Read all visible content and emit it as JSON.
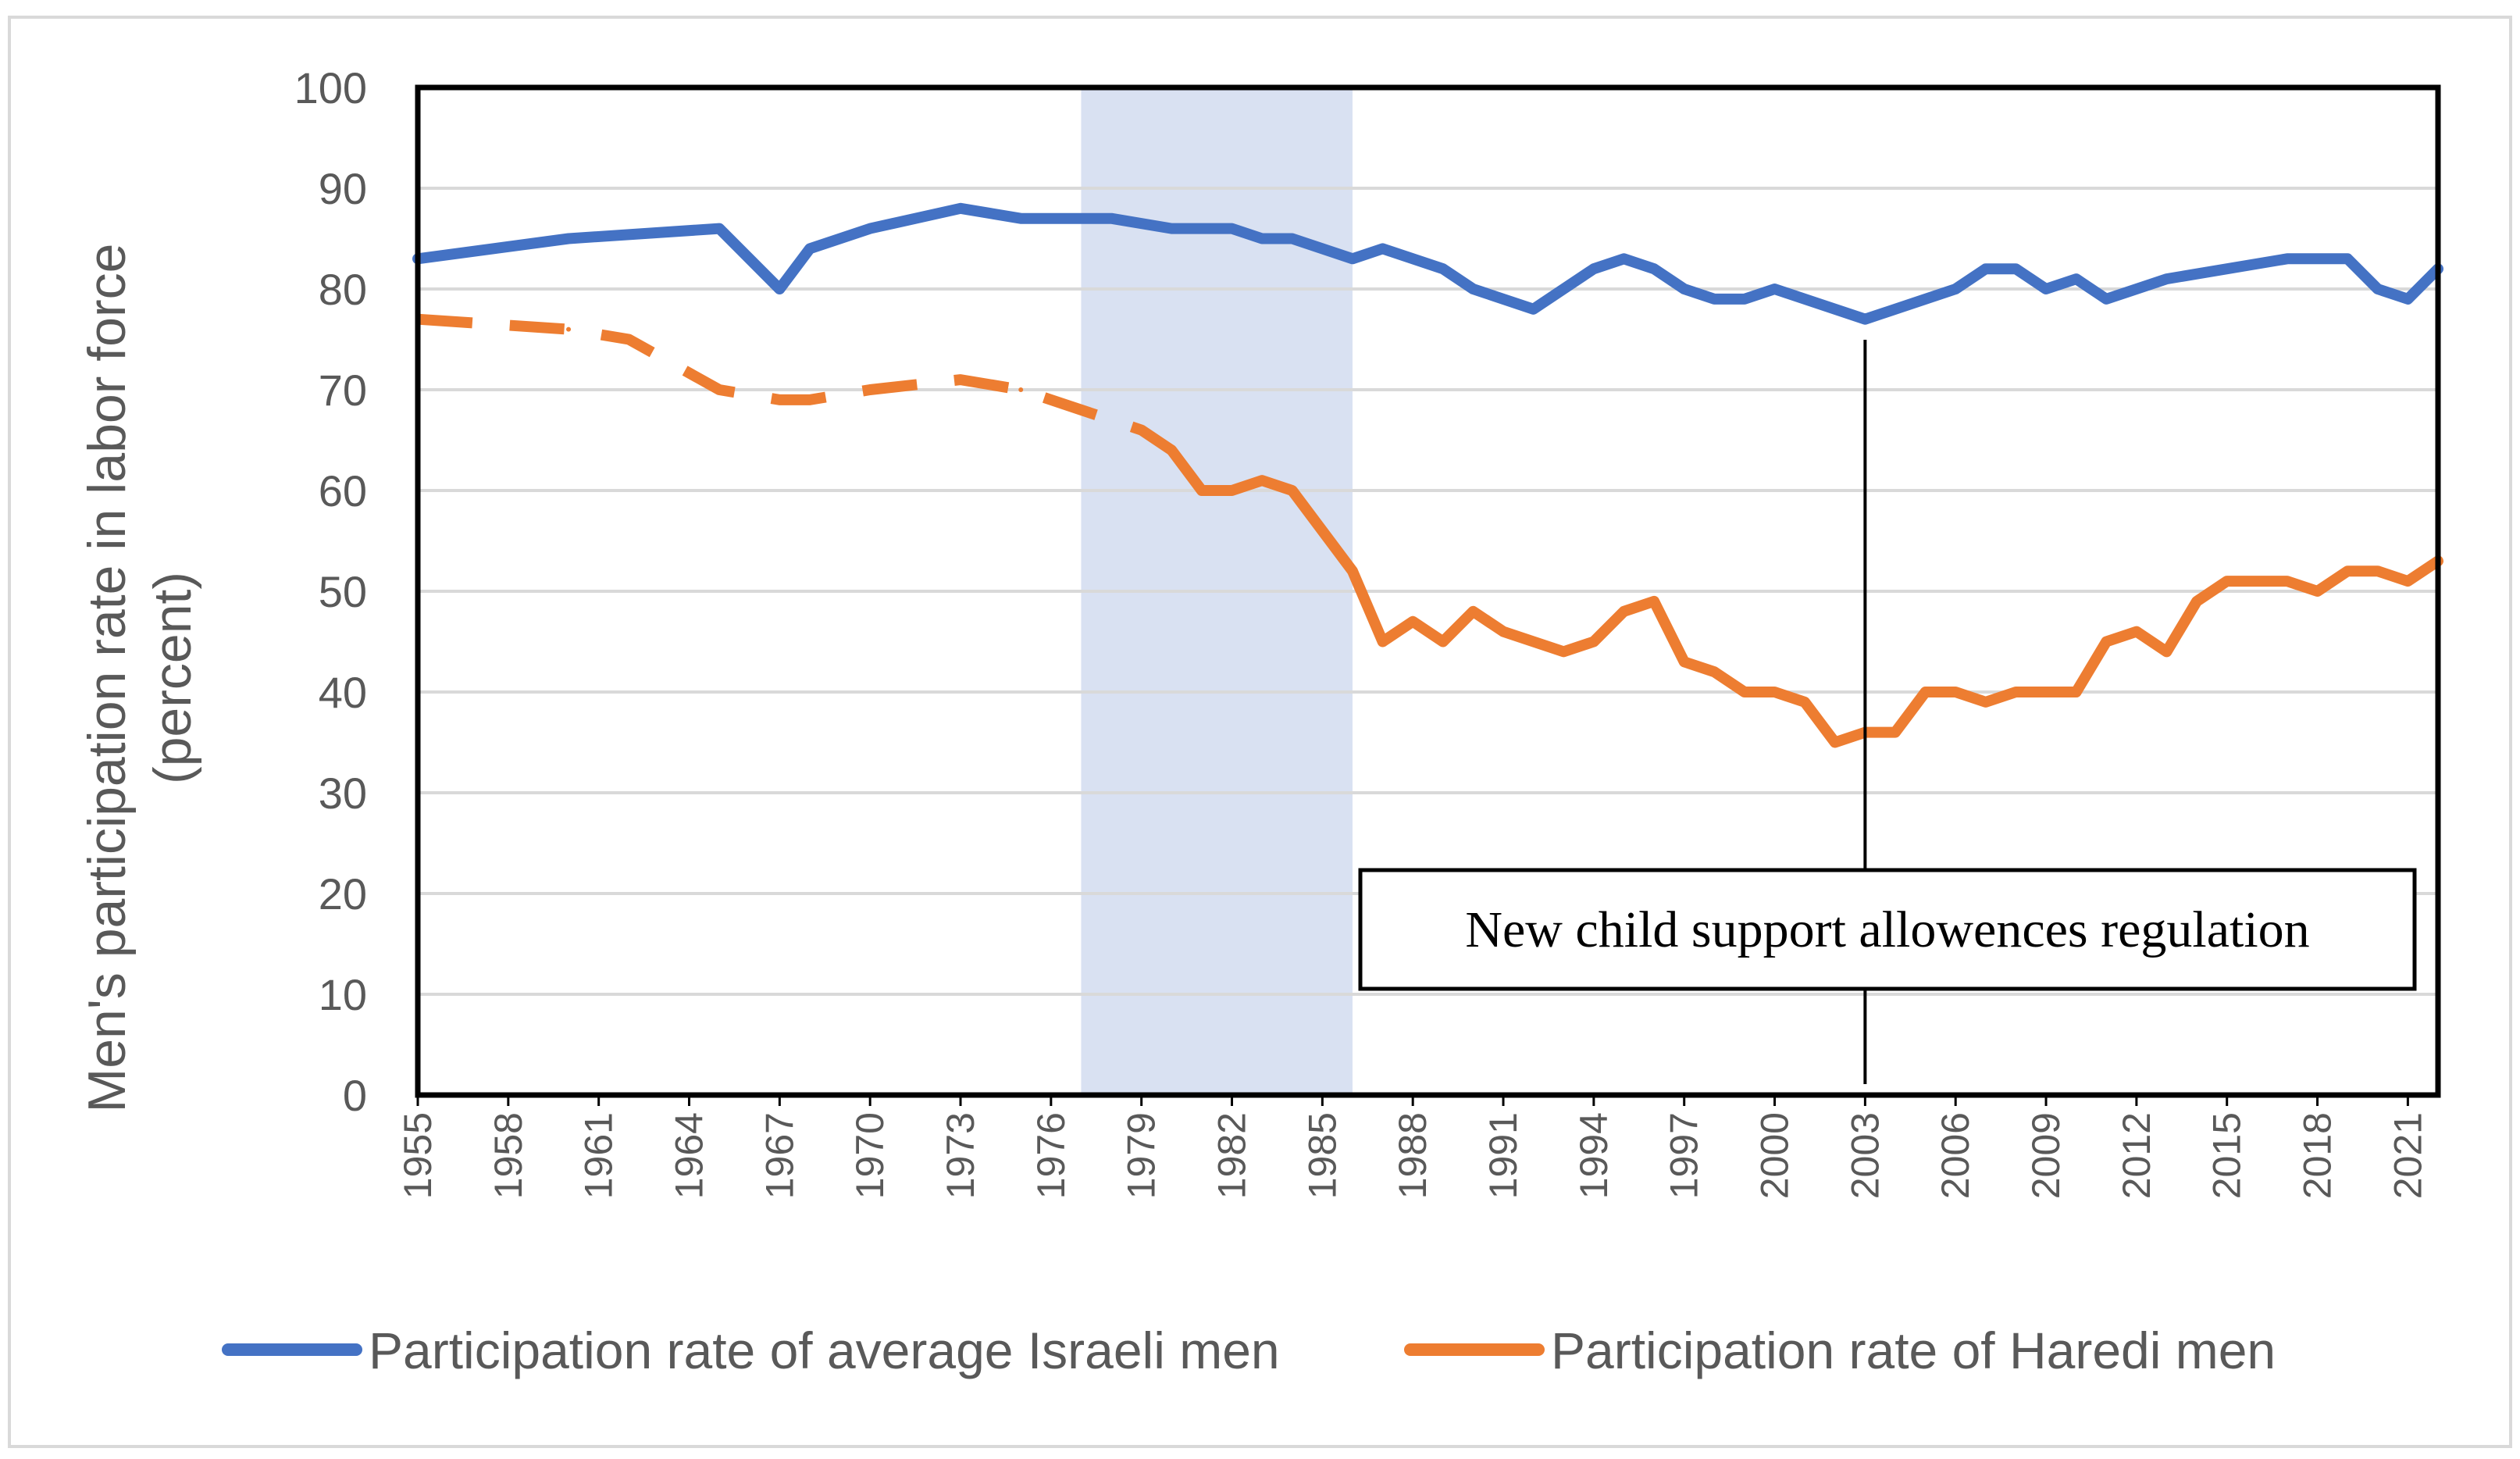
{
  "chart_data": {
    "type": "line",
    "title": "",
    "xlabel": "",
    "ylabel": "Men's participation rate in labor force",
    "ylabel_line2": "(percent)",
    "ylim": [
      0,
      100
    ],
    "yticks": [
      "0",
      "10",
      "20",
      "30",
      "40",
      "50",
      "60",
      "70",
      "80",
      "90",
      "100"
    ],
    "xlim": [
      1955,
      2022
    ],
    "xticks": [
      "1955",
      "1958",
      "1961",
      "1964",
      "1967",
      "1970",
      "1973",
      "1976",
      "1979",
      "1982",
      "1985",
      "1988",
      "1991",
      "1994",
      "1997",
      "2000",
      "2003",
      "2006",
      "2009",
      "2012",
      "2015",
      "2018",
      "2021"
    ],
    "grid": true,
    "shaded_period": {
      "from": 1977,
      "to": 1986,
      "color": "#d9e1f2"
    },
    "annotation": {
      "text": "New child support allowences regulation",
      "year": 2003
    },
    "series": [
      {
        "name": "Participation rate of average Israeli men",
        "color": "#4472c4",
        "x": [
          1955,
          1960,
          1965,
          1967,
          1968,
          1970,
          1973,
          1975,
          1977,
          1978,
          1980,
          1982,
          1983,
          1984,
          1986,
          1987,
          1989,
          1990,
          1992,
          1994,
          1995,
          1996,
          1997,
          1998,
          1999,
          2000,
          2003,
          2006,
          2007,
          2008,
          2009,
          2010,
          2011,
          2013,
          2017,
          2019,
          2020,
          2021,
          2022
        ],
        "values": [
          83,
          85,
          86,
          80,
          84,
          86,
          88,
          87,
          87,
          87,
          86,
          86,
          85,
          85,
          83,
          84,
          82,
          80,
          78,
          82,
          83,
          82,
          80,
          79,
          79,
          80,
          77,
          80,
          82,
          82,
          80,
          81,
          79,
          81,
          83,
          83,
          80,
          79,
          82
        ]
      },
      {
        "name": "Participation rate of Haredi men",
        "color": "#ed7d31",
        "dashed_until": 1980,
        "x": [
          1955,
          1960,
          1962,
          1965,
          1967,
          1968,
          1970,
          1973,
          1975,
          1977,
          1979,
          1980,
          1981,
          1982,
          1983,
          1984,
          1986,
          1987,
          1988,
          1989,
          1990,
          1991,
          1992,
          1993,
          1994,
          1995,
          1996,
          1997,
          1998,
          1999,
          2000,
          2001,
          2002,
          2003,
          2004,
          2005,
          2006,
          2007,
          2008,
          2009,
          2010,
          2011,
          2012,
          2013,
          2014,
          2015,
          2016,
          2017,
          2018,
          2019,
          2020,
          2021,
          2022
        ],
        "values": [
          77,
          76,
          75,
          70,
          69,
          69,
          70,
          71,
          70,
          68,
          66,
          64,
          60,
          60,
          61,
          60,
          52,
          45,
          47,
          45,
          48,
          46,
          45,
          44,
          45,
          48,
          49,
          43,
          42,
          40,
          40,
          39,
          35,
          36,
          36,
          40,
          40,
          39,
          40,
          40,
          40,
          45,
          46,
          44,
          49,
          51,
          51,
          51,
          50,
          52,
          52,
          51,
          53
        ]
      }
    ],
    "legend": [
      "Participation rate of average Israeli men",
      "Participation rate of Haredi men"
    ],
    "legend_position": "bottom"
  }
}
